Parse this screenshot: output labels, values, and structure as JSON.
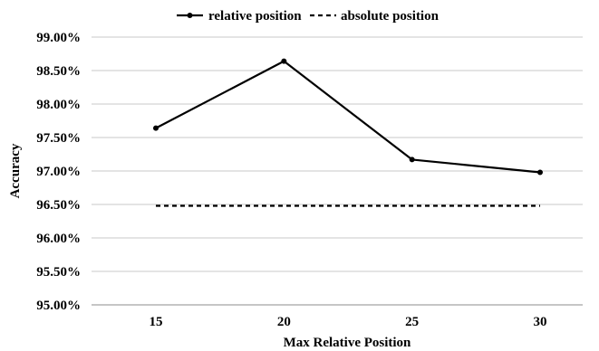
{
  "chart_data": {
    "type": "line",
    "title": "",
    "xlabel": "Max Relative Position",
    "ylabel": "Accuracy",
    "categories": [
      "15",
      "20",
      "25",
      "30"
    ],
    "y_tick_labels": [
      "95.00%",
      "95.50%",
      "96.00%",
      "96.50%",
      "97.00%",
      "97.50%",
      "98.00%",
      "98.50%",
      "99.00%"
    ],
    "ylim": [
      95.0,
      99.0
    ],
    "y_tick_step": 0.5,
    "y_unit": "%",
    "grid": "horizontal",
    "legend_position": "top",
    "series": [
      {
        "name": "relative position",
        "values": [
          97.64,
          98.64,
          97.17,
          96.98
        ],
        "line_style": "solid",
        "markers": true,
        "color": "#000000"
      },
      {
        "name": "absolute position",
        "values": [
          96.48,
          96.48,
          96.48,
          96.48
        ],
        "line_style": "dashed",
        "markers": false,
        "color": "#000000"
      }
    ]
  }
}
